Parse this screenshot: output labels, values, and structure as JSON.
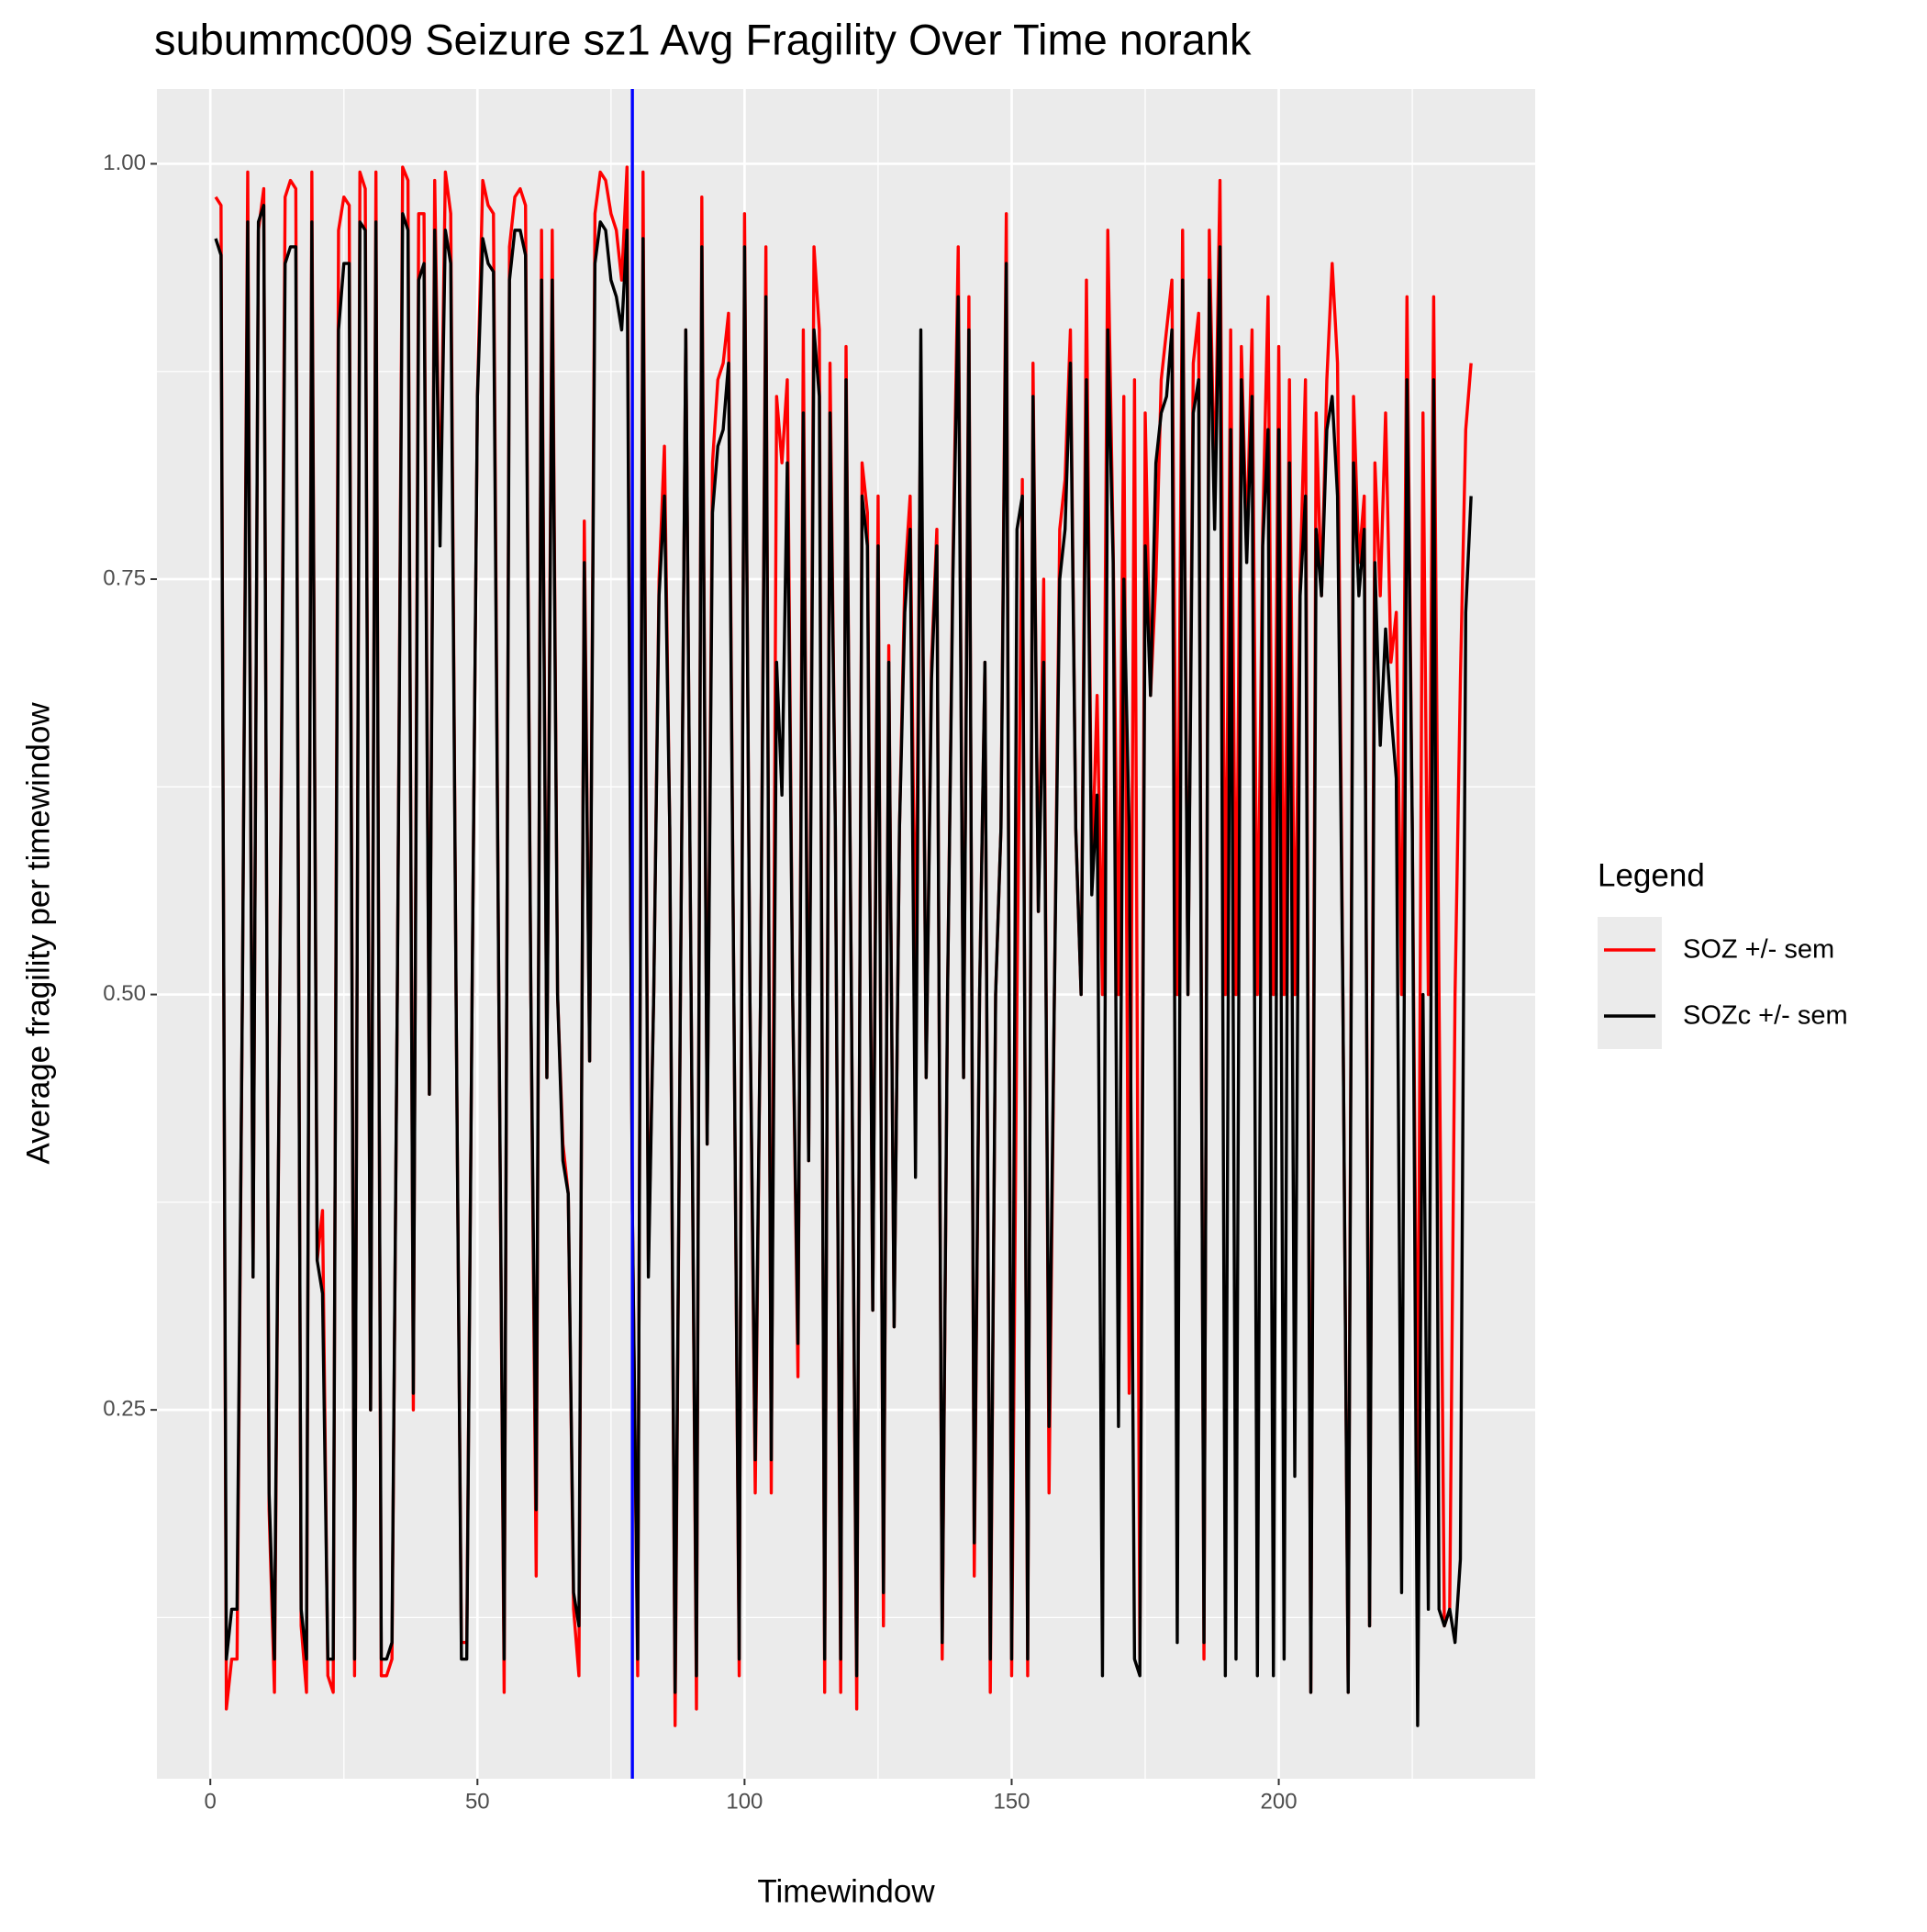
{
  "chart_data": {
    "type": "line",
    "title": "subummc009 Seizure sz1 Avg Fragility Over Time norank",
    "x_label": "Timewindow",
    "y_label": "Average fragility per timewindow",
    "legend_title": "Legend",
    "legend_position": "right",
    "grid": true,
    "xlim": [
      -10,
      248
    ],
    "ylim": [
      0.028,
      1.045
    ],
    "xticks": [
      0,
      50,
      100,
      150,
      200
    ],
    "yticks": [
      {
        "value": 0.25,
        "label": "0.25"
      },
      {
        "value": 0.5,
        "label": "0.50"
      },
      {
        "value": 0.75,
        "label": "0.75"
      },
      {
        "value": 1,
        "label": "1.00"
      }
    ],
    "vline": {
      "x": 79,
      "color": "#0000ff"
    },
    "x": [
      1,
      2,
      3,
      4,
      5,
      6,
      7,
      8,
      9,
      10,
      11,
      12,
      13,
      14,
      15,
      16,
      17,
      18,
      19,
      20,
      21,
      22,
      23,
      24,
      25,
      26,
      27,
      28,
      29,
      30,
      31,
      32,
      33,
      34,
      35,
      36,
      37,
      38,
      39,
      40,
      41,
      42,
      43,
      44,
      45,
      46,
      47,
      48,
      49,
      50,
      51,
      52,
      53,
      54,
      55,
      56,
      57,
      58,
      59,
      60,
      61,
      62,
      63,
      64,
      65,
      66,
      67,
      68,
      69,
      70,
      71,
      72,
      73,
      74,
      75,
      76,
      77,
      78,
      79,
      80,
      81,
      82,
      83,
      84,
      85,
      86,
      87,
      88,
      89,
      90,
      91,
      92,
      93,
      94,
      95,
      96,
      97,
      98,
      99,
      100,
      101,
      102,
      103,
      104,
      105,
      106,
      107,
      108,
      109,
      110,
      111,
      112,
      113,
      114,
      115,
      116,
      117,
      118,
      119,
      120,
      121,
      122,
      123,
      124,
      125,
      126,
      127,
      128,
      129,
      130,
      131,
      132,
      133,
      134,
      135,
      136,
      137,
      138,
      139,
      140,
      141,
      142,
      143,
      144,
      145,
      146,
      147,
      148,
      149,
      150,
      151,
      152,
      153,
      154,
      155,
      156,
      157,
      158,
      159,
      160,
      161,
      162,
      163,
      164,
      165,
      166,
      167,
      168,
      169,
      170,
      171,
      172,
      173,
      174,
      175,
      176,
      177,
      178,
      179,
      180,
      181,
      182,
      183,
      184,
      185,
      186,
      187,
      188,
      189,
      190,
      191,
      192,
      193,
      194,
      195,
      196,
      197,
      198,
      199,
      200,
      201,
      202,
      203,
      204,
      205,
      206,
      207,
      208,
      209,
      210,
      211,
      212,
      213,
      214,
      215,
      216,
      217,
      218,
      219,
      220,
      221,
      222,
      223,
      224,
      225,
      226,
      227,
      228,
      229,
      230,
      231,
      232,
      233,
      234,
      235,
      236
    ],
    "series": [
      {
        "name": "SOZ +/- sem",
        "color": "#ff0000",
        "values": [
          0.98,
          0.975,
          0.07,
          0.1,
          0.1,
          0.5,
          0.995,
          0.33,
          0.96,
          0.985,
          0.19,
          0.08,
          0.5,
          0.98,
          0.99,
          0.985,
          0.12,
          0.08,
          0.995,
          0.34,
          0.37,
          0.09,
          0.08,
          0.96,
          0.98,
          0.975,
          0.09,
          0.995,
          0.985,
          0.25,
          0.995,
          0.09,
          0.09,
          0.1,
          0.5,
          0.998,
          0.99,
          0.25,
          0.97,
          0.97,
          0.44,
          0.99,
          0.78,
          0.995,
          0.97,
          0.5,
          0.11,
          0.11,
          0.5,
          0.86,
          0.99,
          0.975,
          0.97,
          0.5,
          0.08,
          0.95,
          0.98,
          0.985,
          0.975,
          0.5,
          0.15,
          0.96,
          0.45,
          0.96,
          0.5,
          0.41,
          0.38,
          0.13,
          0.09,
          0.785,
          0.46,
          0.97,
          0.995,
          0.99,
          0.97,
          0.96,
          0.93,
          0.998,
          0.37,
          0.09,
          0.995,
          0.34,
          0.5,
          0.75,
          0.83,
          0.6,
          0.06,
          0.5,
          0.9,
          0.5,
          0.07,
          0.98,
          0.41,
          0.82,
          0.87,
          0.88,
          0.91,
          0.5,
          0.09,
          0.97,
          0.5,
          0.2,
          0.5,
          0.95,
          0.2,
          0.86,
          0.82,
          0.87,
          0.5,
          0.27,
          0.9,
          0.4,
          0.95,
          0.9,
          0.08,
          0.88,
          0.6,
          0.08,
          0.89,
          0.5,
          0.07,
          0.82,
          0.79,
          0.31,
          0.8,
          0.12,
          0.71,
          0.3,
          0.6,
          0.75,
          0.8,
          0.5,
          0.87,
          0.45,
          0.7,
          0.78,
          0.1,
          0.5,
          0.76,
          0.95,
          0.45,
          0.92,
          0.15,
          0.5,
          0.7,
          0.08,
          0.5,
          0.6,
          0.97,
          0.09,
          0.5,
          0.81,
          0.09,
          0.88,
          0.55,
          0.75,
          0.2,
          0.5,
          0.78,
          0.81,
          0.9,
          0.6,
          0.5,
          0.93,
          0.57,
          0.68,
          0.5,
          0.96,
          0.77,
          0.5,
          0.86,
          0.26,
          0.87,
          0.1,
          0.85,
          0.68,
          0.75,
          0.87,
          0.9,
          0.93,
          0.5,
          0.96,
          0.5,
          0.88,
          0.91,
          0.1,
          0.96,
          0.8,
          0.99,
          0.5,
          0.9,
          0.5,
          0.89,
          0.77,
          0.9,
          0.5,
          0.78,
          0.92,
          0.5,
          0.89,
          0.5,
          0.87,
          0.5,
          0.75,
          0.87,
          0.08,
          0.85,
          0.74,
          0.87,
          0.94,
          0.88,
          0.5,
          0.08,
          0.86,
          0.76,
          0.8,
          0.12,
          0.82,
          0.74,
          0.85,
          0.7,
          0.73,
          0.5,
          0.92,
          0.6,
          0.2,
          0.85,
          0.5,
          0.92,
          0.5,
          0.12,
          0.13,
          0.5,
          0.69,
          0.84,
          0.88
        ]
      },
      {
        "name": "SOZc +/- sem",
        "color": "#000000",
        "values": [
          0.955,
          0.945,
          0.1,
          0.13,
          0.13,
          0.5,
          0.965,
          0.33,
          0.965,
          0.975,
          0.2,
          0.1,
          0.5,
          0.94,
          0.95,
          0.95,
          0.13,
          0.1,
          0.965,
          0.34,
          0.32,
          0.1,
          0.1,
          0.9,
          0.94,
          0.94,
          0.1,
          0.965,
          0.96,
          0.25,
          0.965,
          0.1,
          0.1,
          0.11,
          0.5,
          0.97,
          0.96,
          0.26,
          0.93,
          0.94,
          0.44,
          0.96,
          0.77,
          0.96,
          0.94,
          0.5,
          0.1,
          0.1,
          0.5,
          0.86,
          0.955,
          0.94,
          0.935,
          0.5,
          0.1,
          0.93,
          0.96,
          0.96,
          0.945,
          0.5,
          0.19,
          0.93,
          0.45,
          0.93,
          0.5,
          0.4,
          0.38,
          0.14,
          0.12,
          0.76,
          0.46,
          0.94,
          0.965,
          0.96,
          0.93,
          0.92,
          0.9,
          0.96,
          0.37,
          0.1,
          0.955,
          0.33,
          0.5,
          0.74,
          0.8,
          0.6,
          0.08,
          0.5,
          0.9,
          0.5,
          0.09,
          0.95,
          0.41,
          0.79,
          0.83,
          0.84,
          0.88,
          0.5,
          0.1,
          0.95,
          0.5,
          0.22,
          0.5,
          0.92,
          0.22,
          0.7,
          0.62,
          0.82,
          0.5,
          0.29,
          0.85,
          0.4,
          0.9,
          0.86,
          0.1,
          0.85,
          0.6,
          0.1,
          0.87,
          0.5,
          0.09,
          0.8,
          0.77,
          0.31,
          0.77,
          0.14,
          0.7,
          0.3,
          0.6,
          0.73,
          0.78,
          0.39,
          0.9,
          0.45,
          0.69,
          0.77,
          0.11,
          0.5,
          0.75,
          0.92,
          0.45,
          0.9,
          0.17,
          0.5,
          0.7,
          0.1,
          0.5,
          0.6,
          0.94,
          0.1,
          0.78,
          0.8,
          0.1,
          0.86,
          0.55,
          0.7,
          0.24,
          0.5,
          0.75,
          0.78,
          0.88,
          0.6,
          0.5,
          0.87,
          0.56,
          0.62,
          0.09,
          0.9,
          0.76,
          0.24,
          0.75,
          0.6,
          0.1,
          0.09,
          0.77,
          0.68,
          0.82,
          0.85,
          0.86,
          0.9,
          0.11,
          0.93,
          0.5,
          0.85,
          0.87,
          0.11,
          0.93,
          0.78,
          0.95,
          0.09,
          0.84,
          0.1,
          0.87,
          0.76,
          0.86,
          0.09,
          0.77,
          0.84,
          0.09,
          0.84,
          0.1,
          0.82,
          0.21,
          0.74,
          0.8,
          0.08,
          0.78,
          0.74,
          0.84,
          0.86,
          0.8,
          0.5,
          0.08,
          0.82,
          0.74,
          0.78,
          0.12,
          0.76,
          0.65,
          0.72,
          0.67,
          0.63,
          0.14,
          0.87,
          0.6,
          0.06,
          0.5,
          0.13,
          0.87,
          0.13,
          0.12,
          0.13,
          0.11,
          0.16,
          0.73,
          0.8
        ]
      }
    ]
  }
}
